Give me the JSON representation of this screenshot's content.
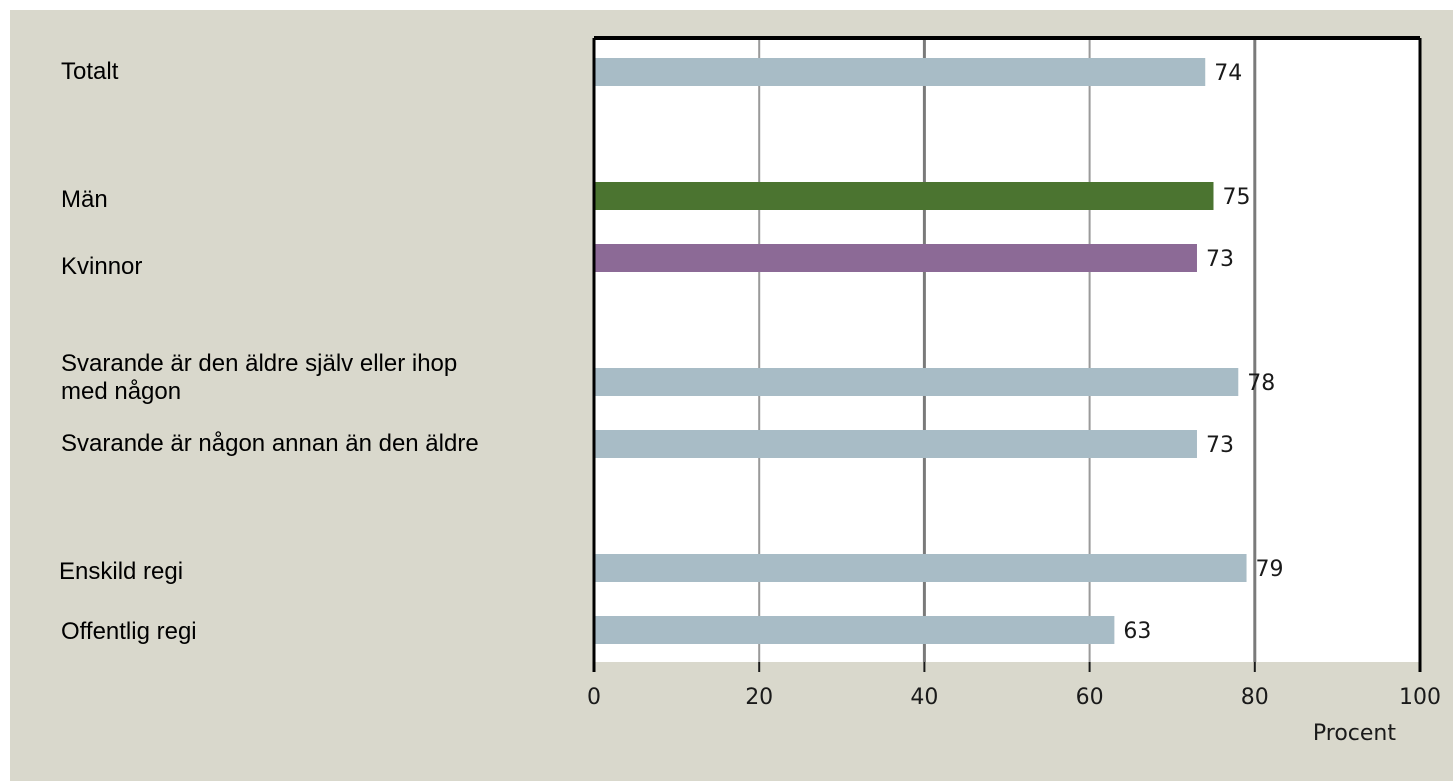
{
  "chart_data": {
    "type": "bar",
    "orientation": "horizontal",
    "categories": [
      "Totalt",
      "Män",
      "Kvinnor",
      "Svarande är den äldre själv eller ihop med någon",
      "Svarande är någon annan än den äldre",
      "Enskild regi",
      "Offentlig regi"
    ],
    "values": [
      74,
      75,
      73,
      78,
      73,
      79,
      63
    ],
    "bar_colors": [
      "#a8bcc6",
      "#4b7430",
      "#8c6a96",
      "#a8bcc6",
      "#a8bcc6",
      "#a8bcc6",
      "#a8bcc6"
    ],
    "xlim": [
      0,
      100
    ],
    "x_ticks": [
      0,
      20,
      40,
      60,
      80,
      100
    ],
    "xlabel": "Procent",
    "grid": "vertical",
    "data_labels": true
  }
}
